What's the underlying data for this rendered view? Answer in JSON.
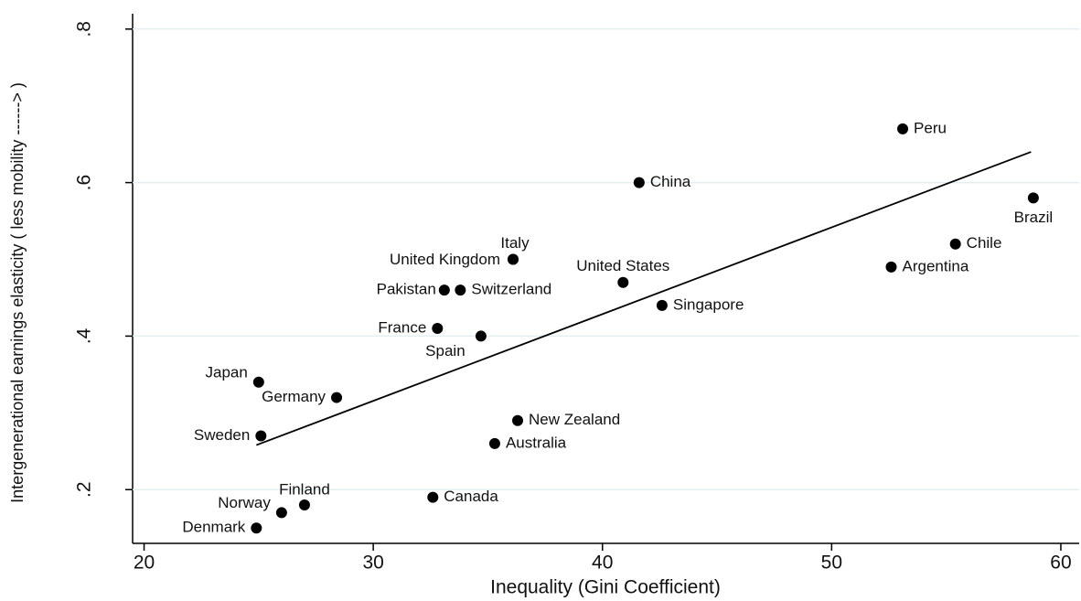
{
  "chart_data": {
    "type": "scatter",
    "x_label": "Inequality (Gini Coefficient)",
    "y_label": "Intergenerational earnings elasticity ( less mobility ------> )",
    "labels": [
      "Peru",
      "China",
      "Brazil",
      "Chile",
      "Argentina",
      "Italy",
      "United Kingdom",
      "United States",
      "Pakistan",
      "Switzerland",
      "Singapore",
      "France",
      "Spain",
      "Japan",
      "Germany",
      "Sweden",
      "New Zealand",
      "Australia",
      "Canada",
      "Finland",
      "Norway",
      "Denmark"
    ],
    "x": [
      53.1,
      41.6,
      58.8,
      55.4,
      52.6,
      36.1,
      36.1,
      40.9,
      33.1,
      33.8,
      42.6,
      32.8,
      34.7,
      25.0,
      28.4,
      25.1,
      36.3,
      35.3,
      32.6,
      27.0,
      26.0,
      24.9
    ],
    "y": [
      0.67,
      0.6,
      0.58,
      0.52,
      0.49,
      0.5,
      0.5,
      0.47,
      0.46,
      0.46,
      0.44,
      0.41,
      0.4,
      0.34,
      0.32,
      0.27,
      0.29,
      0.26,
      0.19,
      0.18,
      0.17,
      0.15
    ],
    "color": "#000000",
    "fit_line": {
      "x": [
        24.9,
        58.7
      ],
      "y": [
        0.258,
        0.64
      ]
    },
    "xlim": [
      19.5,
      60.8
    ],
    "ylim": [
      0.13,
      0.82
    ],
    "xticks": [
      20,
      30,
      40,
      50,
      60
    ],
    "yticks": [
      {
        "value": 0.2,
        "label": ".2"
      },
      {
        "value": 0.4,
        "label": ".4"
      },
      {
        "value": 0.6,
        "label": ".6"
      },
      {
        "value": 0.8,
        "label": ".8"
      }
    ],
    "grid": true
  }
}
